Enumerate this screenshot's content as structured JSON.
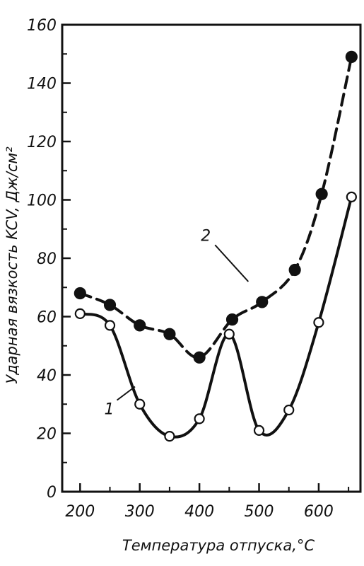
{
  "chart_data": {
    "type": "line",
    "title": "",
    "xlabel": "Температура отпуска,°C",
    "ylabel": "Ударная вязкость KCV, Дж/см²",
    "xlim": [
      170,
      670
    ],
    "ylim": [
      0,
      160
    ],
    "x_ticks": [
      200,
      300,
      400,
      500,
      600
    ],
    "y_ticks": [
      0,
      20,
      40,
      60,
      80,
      100,
      120,
      140,
      160
    ],
    "x_tick_labels": [
      "200",
      "300",
      "400",
      "500",
      "600"
    ],
    "y_tick_labels": [
      "0",
      "20",
      "40",
      "60",
      "80",
      "100",
      "120",
      "140",
      "160"
    ],
    "grid": false,
    "series": [
      {
        "label": "1",
        "marker": "open-circle",
        "line_style": "solid",
        "points": [
          {
            "x": 200,
            "y": 61
          },
          {
            "x": 250,
            "y": 57
          },
          {
            "x": 300,
            "y": 30
          },
          {
            "x": 350,
            "y": 19
          },
          {
            "x": 400,
            "y": 25
          },
          {
            "x": 450,
            "y": 54
          },
          {
            "x": 500,
            "y": 21
          },
          {
            "x": 550,
            "y": 28
          },
          {
            "x": 600,
            "y": 58
          },
          {
            "x": 655,
            "y": 101
          }
        ]
      },
      {
        "label": "2",
        "marker": "filled-circle",
        "line_style": "dashed",
        "points": [
          {
            "x": 200,
            "y": 68
          },
          {
            "x": 250,
            "y": 64
          },
          {
            "x": 300,
            "y": 57
          },
          {
            "x": 350,
            "y": 54
          },
          {
            "x": 400,
            "y": 46
          },
          {
            "x": 455,
            "y": 59
          },
          {
            "x": 505,
            "y": 65
          },
          {
            "x": 560,
            "y": 76
          },
          {
            "x": 605,
            "y": 102
          },
          {
            "x": 655,
            "y": 149
          }
        ]
      }
    ]
  }
}
